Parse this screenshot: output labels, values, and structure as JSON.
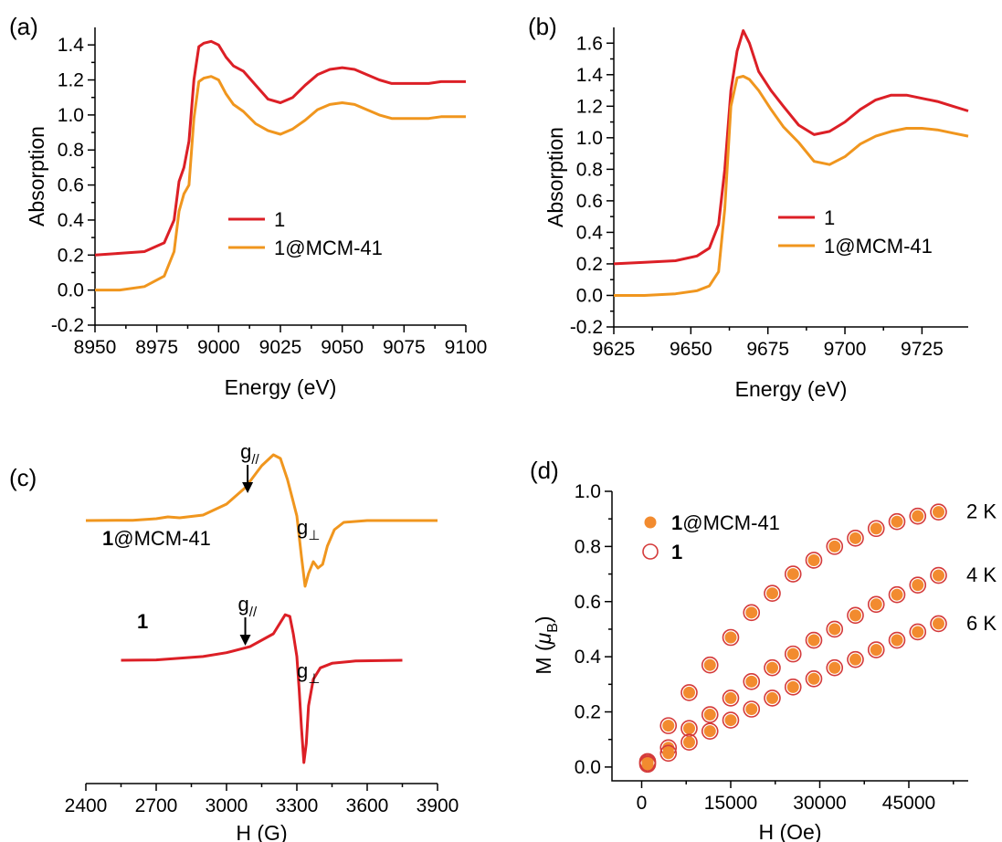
{
  "colors": {
    "red": "#dc1f26",
    "orange": "#f0961e",
    "marker_fill": "#f28b2f",
    "open_marker": "#d43a3a",
    "axis": "#000000"
  },
  "chart_data": [
    {
      "id": "a",
      "type": "line",
      "panel_label": "(a)",
      "xlabel": "Energy (eV)",
      "ylabel": "Absorption",
      "xlim": [
        8950,
        9100
      ],
      "ylim": [
        -0.2,
        1.5
      ],
      "xticks": [
        8950,
        8975,
        9000,
        9025,
        9050,
        9075,
        9100
      ],
      "xtick_labels": [
        "8950",
        "8975",
        "9000",
        "9025",
        "9050",
        "9075",
        "9100"
      ],
      "yticks": [
        -0.2,
        0.0,
        0.2,
        0.4,
        0.6,
        0.8,
        1.0,
        1.2,
        1.4
      ],
      "ytick_labels": [
        "-0.2",
        "0.0",
        "0.2",
        "0.4",
        "0.6",
        "0.8",
        "1.0",
        "1.2",
        "1.4"
      ],
      "legend_position": "center-right",
      "series": [
        {
          "name": "1",
          "color": "#dc1f26",
          "x": [
            8950,
            8960,
            8970,
            8978,
            8982,
            8984,
            8986,
            8988,
            8990,
            8992,
            8994,
            8997,
            9000,
            9003,
            9006,
            9010,
            9015,
            9020,
            9025,
            9030,
            9035,
            9040,
            9045,
            9050,
            9055,
            9060,
            9065,
            9070,
            9075,
            9080,
            9085,
            9090,
            9095,
            9100
          ],
          "y": [
            0.2,
            0.21,
            0.22,
            0.27,
            0.4,
            0.62,
            0.7,
            0.85,
            1.2,
            1.39,
            1.41,
            1.42,
            1.4,
            1.33,
            1.28,
            1.25,
            1.17,
            1.09,
            1.07,
            1.1,
            1.17,
            1.23,
            1.26,
            1.27,
            1.26,
            1.23,
            1.2,
            1.18,
            1.18,
            1.18,
            1.18,
            1.19,
            1.19,
            1.19
          ]
        },
        {
          "name": "1@MCM-41",
          "color": "#f0961e",
          "x": [
            8950,
            8960,
            8970,
            8978,
            8982,
            8984,
            8986,
            8988,
            8990,
            8992,
            8994,
            8997,
            9000,
            9003,
            9006,
            9010,
            9015,
            9020,
            9025,
            9030,
            9035,
            9040,
            9045,
            9050,
            9055,
            9060,
            9065,
            9070,
            9075,
            9080,
            9085,
            9090,
            9095,
            9100
          ],
          "y": [
            0.0,
            0.0,
            0.02,
            0.08,
            0.22,
            0.45,
            0.55,
            0.6,
            0.98,
            1.19,
            1.21,
            1.22,
            1.2,
            1.12,
            1.06,
            1.02,
            0.95,
            0.91,
            0.89,
            0.92,
            0.97,
            1.03,
            1.06,
            1.07,
            1.06,
            1.03,
            1.0,
            0.98,
            0.98,
            0.98,
            0.98,
            0.99,
            0.99,
            0.99
          ]
        }
      ]
    },
    {
      "id": "b",
      "type": "line",
      "panel_label": "(b)",
      "xlabel": "Energy (eV)",
      "ylabel": "Absorption",
      "xlim": [
        9625,
        9740
      ],
      "ylim": [
        -0.2,
        1.7
      ],
      "xticks": [
        9625,
        9650,
        9675,
        9700,
        9725
      ],
      "xtick_labels": [
        "9625",
        "9650",
        "9675",
        "9700",
        "9725"
      ],
      "yticks": [
        -0.2,
        0.0,
        0.2,
        0.4,
        0.6,
        0.8,
        1.0,
        1.2,
        1.4,
        1.6
      ],
      "ytick_labels": [
        "-0.2",
        "0.0",
        "0.2",
        "0.4",
        "0.6",
        "0.8",
        "1.0",
        "1.2",
        "1.4",
        "1.6"
      ],
      "legend_position": "center-right",
      "series": [
        {
          "name": "1",
          "color": "#dc1f26",
          "x": [
            9625,
            9635,
            9645,
            9652,
            9656,
            9659,
            9661,
            9663,
            9665,
            9667,
            9669,
            9672,
            9676,
            9680,
            9685,
            9690,
            9695,
            9700,
            9705,
            9710,
            9715,
            9720,
            9725,
            9730,
            9735,
            9740
          ],
          "y": [
            0.2,
            0.21,
            0.22,
            0.25,
            0.3,
            0.45,
            0.8,
            1.3,
            1.55,
            1.68,
            1.6,
            1.42,
            1.3,
            1.2,
            1.08,
            1.02,
            1.04,
            1.1,
            1.18,
            1.24,
            1.27,
            1.27,
            1.25,
            1.23,
            1.2,
            1.17
          ]
        },
        {
          "name": "1@MCM-41",
          "color": "#f0961e",
          "x": [
            9625,
            9635,
            9645,
            9652,
            9656,
            9659,
            9661,
            9663,
            9665,
            9667,
            9669,
            9672,
            9676,
            9680,
            9685,
            9690,
            9695,
            9700,
            9705,
            9710,
            9715,
            9720,
            9725,
            9730,
            9735,
            9740
          ],
          "y": [
            0.0,
            0.0,
            0.01,
            0.03,
            0.06,
            0.15,
            0.55,
            1.2,
            1.38,
            1.39,
            1.37,
            1.3,
            1.18,
            1.07,
            0.97,
            0.85,
            0.83,
            0.88,
            0.96,
            1.01,
            1.04,
            1.06,
            1.06,
            1.05,
            1.03,
            1.01
          ]
        }
      ]
    },
    {
      "id": "c",
      "type": "line",
      "panel_label": "(c)",
      "xlabel": "H (G)",
      "xlim": [
        2400,
        3900
      ],
      "xticks": [
        2400,
        2700,
        3000,
        3300,
        3600,
        3900
      ],
      "xtick_labels": [
        "2400",
        "2700",
        "3000",
        "3300",
        "3600",
        "3900"
      ],
      "y_axis_shown": false,
      "series": [
        {
          "name": "1@MCM-41",
          "label_text": "1@MCM-41",
          "color": "#f0961e",
          "x": [
            2400,
            2600,
            2700,
            2750,
            2800,
            2900,
            3000,
            3080,
            3150,
            3200,
            3230,
            3260,
            3280,
            3300,
            3320,
            3335,
            3350,
            3370,
            3390,
            3410,
            3430,
            3460,
            3500,
            3600,
            3700,
            3750,
            3900
          ],
          "y": [
            0,
            0.3,
            2,
            4,
            3,
            6,
            18,
            36,
            60,
            72,
            68,
            45,
            25,
            5,
            -40,
            -72,
            -58,
            -45,
            -52,
            -48,
            -28,
            -10,
            -2,
            0,
            0,
            0,
            0
          ],
          "annotations": [
            {
              "text": "g",
              "sub": "//",
              "arrow": true,
              "x": 3090
            },
            {
              "text": "g",
              "sub": "⊥",
              "arrow": false,
              "x": 3370
            }
          ]
        },
        {
          "name": "1",
          "label_text": "1",
          "color": "#dc1f26",
          "x": [
            2550,
            2700,
            2900,
            3000,
            3100,
            3200,
            3250,
            3270,
            3285,
            3300,
            3310,
            3320,
            3330,
            3340,
            3350,
            3370,
            3400,
            3450,
            3550,
            3750
          ],
          "y": [
            0,
            0.5,
            5,
            10,
            18,
            35,
            60,
            58,
            35,
            5,
            -40,
            -90,
            -135,
            -110,
            -60,
            -25,
            -10,
            -4,
            -1,
            0
          ],
          "annotations": [
            {
              "text": "g",
              "sub": "//",
              "arrow": true,
              "x": 3080
            },
            {
              "text": "g",
              "sub": "⊥",
              "arrow": false,
              "x": 3370
            }
          ]
        }
      ]
    },
    {
      "id": "d",
      "type": "scatter",
      "panel_label": "(d)",
      "xlabel": "H (Oe)",
      "ylabel_main": "M (",
      "ylabel_mu": "μ",
      "ylabel_sub": "B",
      "ylabel_close": ")",
      "xlim": [
        -5000,
        55000
      ],
      "ylim": [
        -0.05,
        1.0
      ],
      "xticks": [
        0,
        15000,
        30000,
        45000
      ],
      "xtick_labels": [
        "0",
        "15000",
        "30000",
        "45000"
      ],
      "yticks": [
        0.0,
        0.2,
        0.4,
        0.6,
        0.8,
        1.0
      ],
      "ytick_labels": [
        "0.0",
        "0.2",
        "0.4",
        "0.6",
        "0.8",
        "1.0"
      ],
      "legend_position": "top-left",
      "legend": [
        {
          "bold": "1",
          "rest": "@MCM-41",
          "marker": "filled"
        },
        {
          "bold": "1",
          "rest": "",
          "marker": "open"
        }
      ],
      "curve_labels": [
        {
          "text": "2 K",
          "y": 0.925
        },
        {
          "text": "4 K",
          "y": 0.695
        },
        {
          "text": "6 K",
          "y": 0.52
        }
      ],
      "x": [
        1000,
        4500,
        8000,
        11500,
        15000,
        18500,
        22000,
        25500,
        29000,
        32500,
        36000,
        39500,
        43000,
        46500,
        50000
      ],
      "series": [
        {
          "name": "2 K",
          "y": [
            0.02,
            0.15,
            0.27,
            0.37,
            0.47,
            0.56,
            0.63,
            0.7,
            0.75,
            0.8,
            0.83,
            0.865,
            0.89,
            0.91,
            0.925
          ]
        },
        {
          "name": "4 K",
          "y": [
            0.015,
            0.07,
            0.14,
            0.19,
            0.25,
            0.31,
            0.36,
            0.41,
            0.46,
            0.5,
            0.55,
            0.59,
            0.625,
            0.66,
            0.695
          ]
        },
        {
          "name": "6 K",
          "y": [
            0.01,
            0.05,
            0.09,
            0.13,
            0.17,
            0.21,
            0.25,
            0.29,
            0.32,
            0.36,
            0.39,
            0.425,
            0.46,
            0.49,
            0.52
          ]
        }
      ]
    }
  ]
}
